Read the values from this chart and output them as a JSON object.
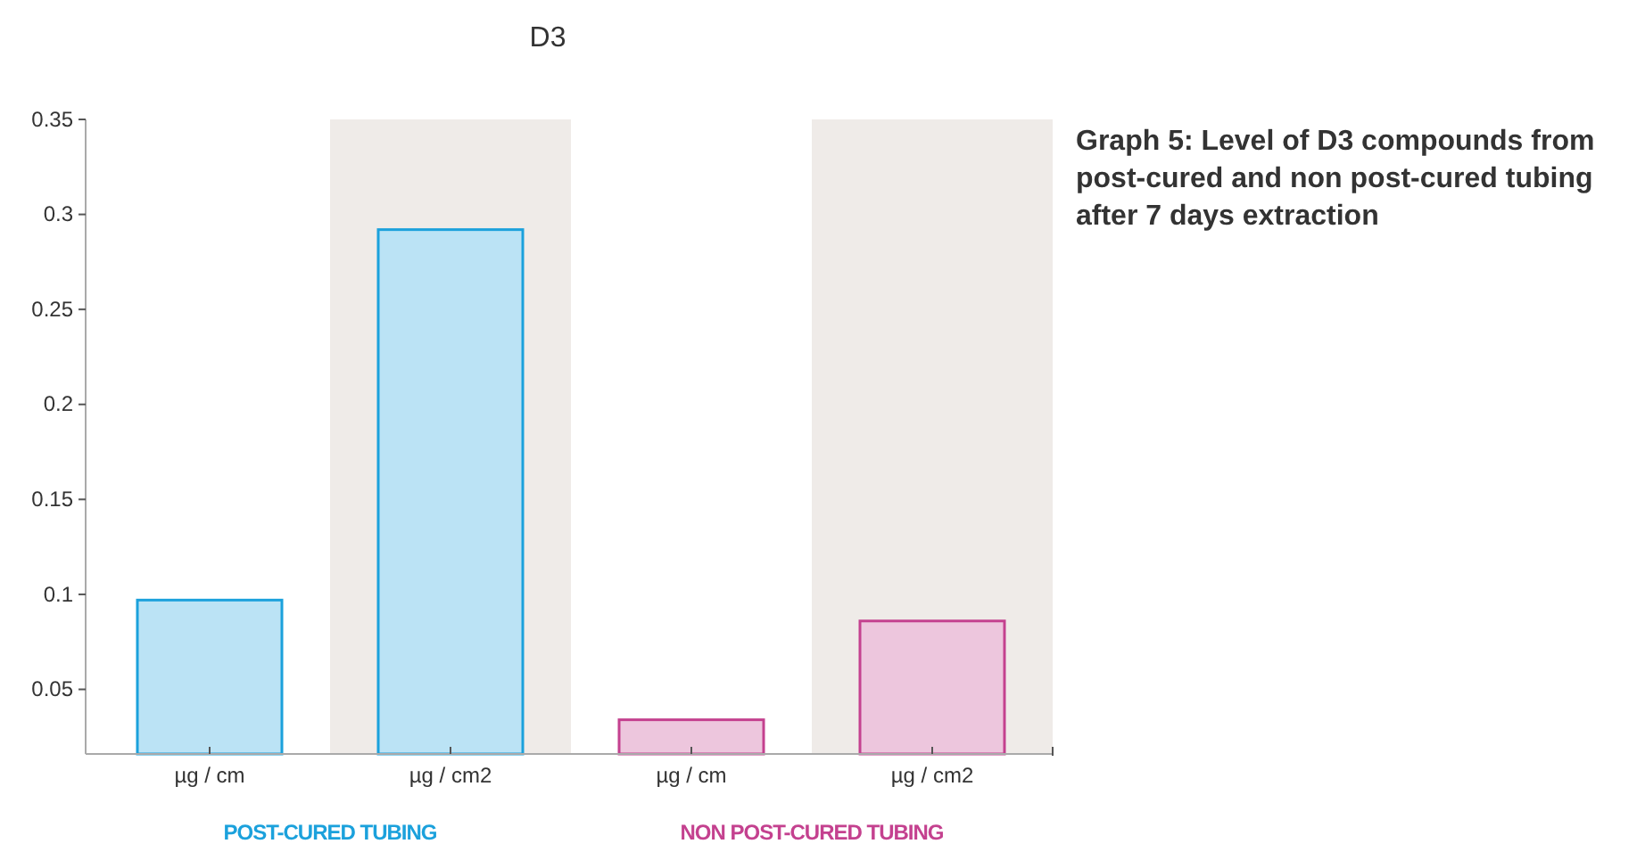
{
  "chart_data": {
    "type": "bar",
    "title": "D3",
    "categories": [
      "µg / cm",
      "µg / cm2",
      "µg / cm",
      "µg / cm2"
    ],
    "values": [
      0.097,
      0.292,
      0.034,
      0.086
    ],
    "colors": [
      "#1ba1dc",
      "#1ba1dc",
      "#c4418f",
      "#c4418f"
    ],
    "ylim": [
      0.016,
      0.35
    ],
    "yticks": [
      0.05,
      0.1,
      0.15,
      0.2,
      0.25,
      0.3,
      0.35
    ],
    "annotations": [
      "POST-CURED TUBING",
      "NON POST-CURED TUBING",
      "Graph 5: Level of D3 compounds from post-cured and non post-cured tubing after 7 days extraction"
    ]
  }
}
